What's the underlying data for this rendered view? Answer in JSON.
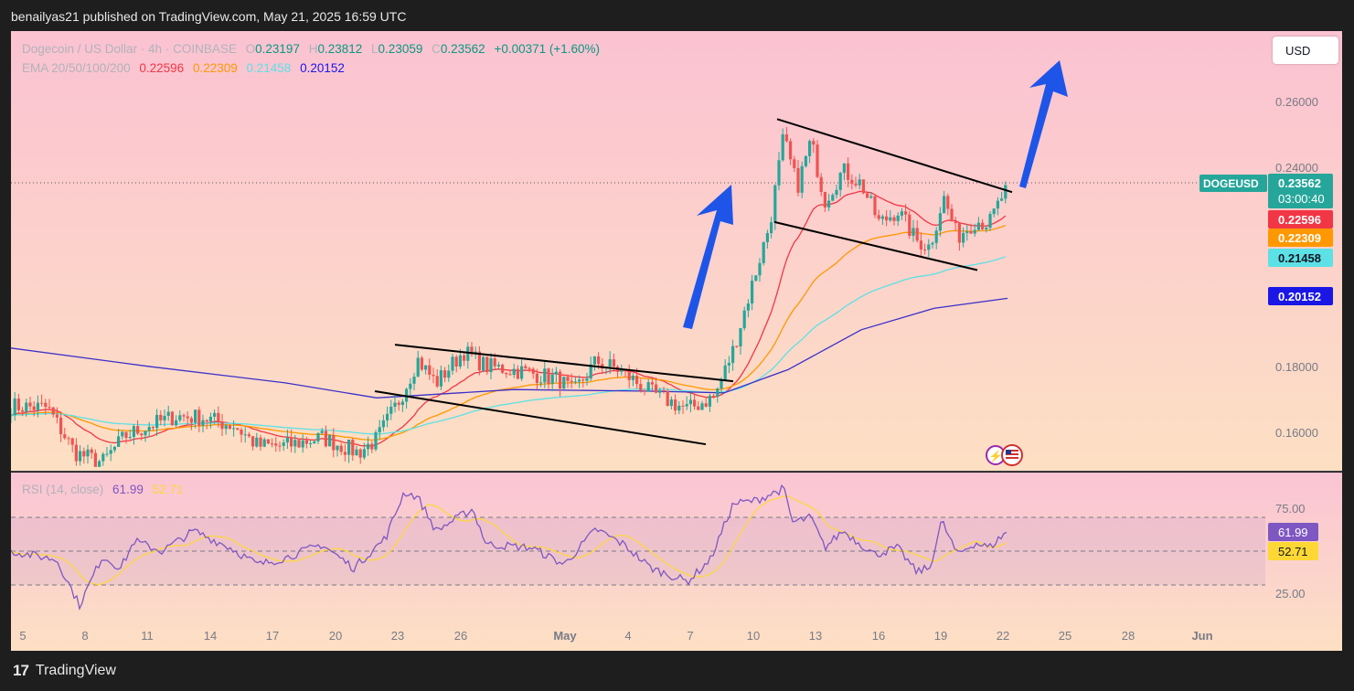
{
  "header": {
    "publish_text": "benailyas21 published on TradingView.com, May 21, 2025 16:59 UTC"
  },
  "footer": {
    "logo_mark": "17",
    "brand": "TradingView"
  },
  "toolbar": {
    "currency_button": "USD"
  },
  "legend": {
    "symbol": "Dogecoin / US Dollar · 4h · COINBASE",
    "open_label": "O",
    "open": "0.23197",
    "high_label": "H",
    "high": "0.23812",
    "low_label": "L",
    "low": "0.23059",
    "close_label": "C",
    "close": "0.23562",
    "change": "+0.00371 (+1.60%)",
    "ema_label": "EMA 20/50/100/200",
    "ema20": "0.22596",
    "ema50": "0.22309",
    "ema100": "0.21458",
    "ema200": "0.20152"
  },
  "rsi_legend": {
    "label": "RSI (14, close)",
    "rsi": "61.99",
    "ma": "52.71"
  },
  "badges": {
    "symbol_tag": "DOGEUSD",
    "price": "0.23562",
    "countdown": "03:00:40",
    "ema20": "0.22596",
    "ema50": "0.22309",
    "ema100": "0.21458",
    "ema200": "0.20152",
    "rsi": "61.99",
    "rsi_ma": "52.71"
  },
  "colors": {
    "ema20": "#f23645",
    "ema50": "#ff9800",
    "ema100": "#5ce1e6",
    "ema200": "#3b2fc9",
    "bull": "#26a69a",
    "bear": "#ef5350",
    "rsi": "#7e57c2",
    "rsi_ma": "#fdd835",
    "arrow": "#1e55e8",
    "price_tag": "#26a69a"
  },
  "chart_data": {
    "type": "candlestick",
    "price_axis": {
      "ticks": [
        "0.26000",
        "0.24000",
        "0.18000",
        "0.16000"
      ],
      "ylim": [
        0.151,
        0.27
      ]
    },
    "x_axis": {
      "ticks": [
        "5",
        "8",
        "11",
        "14",
        "17",
        "20",
        "23",
        "26",
        "May",
        "4",
        "7",
        "10",
        "13",
        "16",
        "19",
        "22",
        "25",
        "28",
        "Jun"
      ]
    },
    "rsi_axis": {
      "ticks": [
        "75.00",
        "25.00"
      ],
      "ylim": [
        10,
        90
      ],
      "bands": [
        70,
        50,
        30
      ]
    },
    "last_close": 0.23562,
    "anchors": [
      {
        "x": 0,
        "p": 0.169
      },
      {
        "x": 40,
        "p": 0.1685
      },
      {
        "x": 70,
        "p": 0.155
      },
      {
        "x": 100,
        "p": 0.152
      },
      {
        "x": 125,
        "p": 0.16
      },
      {
        "x": 150,
        "p": 0.163
      },
      {
        "x": 180,
        "p": 0.166
      },
      {
        "x": 210,
        "p": 0.1655
      },
      {
        "x": 245,
        "p": 0.163
      },
      {
        "x": 270,
        "p": 0.157
      },
      {
        "x": 300,
        "p": 0.157
      },
      {
        "x": 340,
        "p": 0.1595
      },
      {
        "x": 380,
        "p": 0.155
      },
      {
        "x": 400,
        "p": 0.159
      },
      {
        "x": 425,
        "p": 0.171
      },
      {
        "x": 445,
        "p": 0.183
      },
      {
        "x": 465,
        "p": 0.176
      },
      {
        "x": 495,
        "p": 0.1855
      },
      {
        "x": 520,
        "p": 0.181
      },
      {
        "x": 560,
        "p": 0.1795
      },
      {
        "x": 600,
        "p": 0.177
      },
      {
        "x": 615,
        "p": 0.173
      },
      {
        "x": 640,
        "p": 0.1825
      },
      {
        "x": 665,
        "p": 0.18
      },
      {
        "x": 700,
        "p": 0.173
      },
      {
        "x": 740,
        "p": 0.168
      },
      {
        "x": 770,
        "p": 0.172
      },
      {
        "x": 790,
        "p": 0.186
      },
      {
        "x": 810,
        "p": 0.205
      },
      {
        "x": 830,
        "p": 0.224
      },
      {
        "x": 845,
        "p": 0.25
      },
      {
        "x": 860,
        "p": 0.235
      },
      {
        "x": 875,
        "p": 0.249
      },
      {
        "x": 890,
        "p": 0.231
      },
      {
        "x": 910,
        "p": 0.24
      },
      {
        "x": 930,
        "p": 0.236
      },
      {
        "x": 950,
        "p": 0.224
      },
      {
        "x": 970,
        "p": 0.228
      },
      {
        "x": 990,
        "p": 0.219
      },
      {
        "x": 1005,
        "p": 0.217
      },
      {
        "x": 1020,
        "p": 0.232
      },
      {
        "x": 1035,
        "p": 0.22
      },
      {
        "x": 1055,
        "p": 0.225
      },
      {
        "x": 1070,
        "p": 0.224
      },
      {
        "x": 1090,
        "p": 0.2356
      }
    ],
    "ema200_path": [
      {
        "x": 0,
        "p": 0.1865
      },
      {
        "x": 150,
        "p": 0.181
      },
      {
        "x": 300,
        "p": 0.176
      },
      {
        "x": 400,
        "p": 0.1715
      },
      {
        "x": 550,
        "p": 0.174
      },
      {
        "x": 700,
        "p": 0.1735
      },
      {
        "x": 780,
        "p": 0.173
      },
      {
        "x": 850,
        "p": 0.18
      },
      {
        "x": 930,
        "p": 0.192
      },
      {
        "x": 1010,
        "p": 0.1985
      },
      {
        "x": 1090,
        "p": 0.2015
      }
    ],
    "rsi_anchors": [
      {
        "x": 0,
        "v": 50
      },
      {
        "x": 50,
        "v": 45
      },
      {
        "x": 75,
        "v": 18
      },
      {
        "x": 100,
        "v": 47
      },
      {
        "x": 120,
        "v": 40
      },
      {
        "x": 135,
        "v": 56
      },
      {
        "x": 165,
        "v": 50
      },
      {
        "x": 200,
        "v": 62
      },
      {
        "x": 240,
        "v": 52
      },
      {
        "x": 270,
        "v": 42
      },
      {
        "x": 300,
        "v": 46
      },
      {
        "x": 340,
        "v": 54
      },
      {
        "x": 375,
        "v": 40
      },
      {
        "x": 410,
        "v": 58
      },
      {
        "x": 430,
        "v": 85
      },
      {
        "x": 445,
        "v": 82
      },
      {
        "x": 465,
        "v": 62
      },
      {
        "x": 505,
        "v": 75
      },
      {
        "x": 520,
        "v": 54
      },
      {
        "x": 570,
        "v": 52
      },
      {
        "x": 605,
        "v": 42
      },
      {
        "x": 640,
        "v": 63
      },
      {
        "x": 670,
        "v": 54
      },
      {
        "x": 700,
        "v": 40
      },
      {
        "x": 740,
        "v": 32
      },
      {
        "x": 765,
        "v": 45
      },
      {
        "x": 790,
        "v": 78
      },
      {
        "x": 815,
        "v": 80
      },
      {
        "x": 845,
        "v": 87
      },
      {
        "x": 855,
        "v": 67
      },
      {
        "x": 875,
        "v": 70
      },
      {
        "x": 890,
        "v": 52
      },
      {
        "x": 910,
        "v": 62
      },
      {
        "x": 945,
        "v": 48
      },
      {
        "x": 970,
        "v": 52
      },
      {
        "x": 990,
        "v": 38
      },
      {
        "x": 1005,
        "v": 40
      },
      {
        "x": 1018,
        "v": 68
      },
      {
        "x": 1035,
        "v": 48
      },
      {
        "x": 1055,
        "v": 55
      },
      {
        "x": 1070,
        "v": 52
      },
      {
        "x": 1090,
        "v": 62
      }
    ],
    "trendlines": [
      {
        "x1": 420,
        "p1": 0.1875,
        "x2": 790,
        "p2": 0.1765
      },
      {
        "x1": 398,
        "p1": 0.1735,
        "x2": 760,
        "p2": 0.1575
      },
      {
        "x1": 838,
        "p1": 0.2555,
        "x2": 1095,
        "p2": 0.2335
      },
      {
        "x1": 835,
        "p1": 0.2245,
        "x2": 1057,
        "p2": 0.21
      }
    ]
  }
}
